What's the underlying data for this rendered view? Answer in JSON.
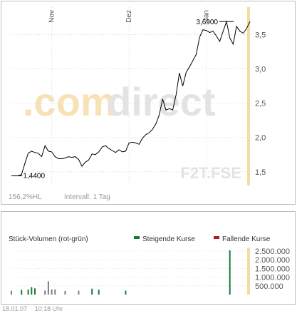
{
  "price_chart": {
    "watermark_main": {
      "part1": ".com",
      "part2": "direct"
    },
    "watermark_symbol": "F2T.FSE",
    "info": {
      "range": "156,2%HL",
      "interval": "Intervall: 1 Tag"
    },
    "colors": {
      "line": "#000000",
      "grid": "#cccccc",
      "highlight": "#f5dca0",
      "watermark_orange": "#f6e2b5",
      "watermark_gray": "#e3e3e3"
    }
  },
  "volume_chart": {
    "title": "Stück-Volumen (rot-grün)",
    "legend": [
      {
        "label": "Steigende Kurse",
        "color": "#1a7a3a"
      },
      {
        "label": "Fallende Kurse",
        "color": "#b01c2e"
      }
    ]
  },
  "footer": {
    "date": "18.01.07",
    "time": "10:18 Uhr"
  },
  "chart_data": [
    {
      "type": "line",
      "title": "",
      "xlabel": "",
      "ylabel": "",
      "x_tick_labels": [
        "Nov",
        "Dez",
        "Jan"
      ],
      "x_tick_index": [
        12,
        35,
        58
      ],
      "y_ticks": [
        "1,5",
        "2,0",
        "2,5",
        "3,0",
        "3,5"
      ],
      "y_tick_values": [
        1.5,
        2.0,
        2.5,
        3.0,
        3.5
      ],
      "ylim": [
        1.3,
        3.9
      ],
      "grid": true,
      "annotations": [
        {
          "text": "1,4400",
          "index": 2,
          "value": 1.44
        },
        {
          "text": "3,6900",
          "index": 64,
          "value": 3.69
        }
      ],
      "series": [
        {
          "values": [
            1.44,
            1.44,
            1.44,
            1.46,
            1.62,
            1.77,
            1.8,
            1.78,
            1.77,
            1.72,
            1.88,
            1.8,
            1.79,
            1.72,
            1.69,
            1.69,
            1.7,
            1.72,
            1.71,
            1.72,
            1.68,
            1.58,
            1.64,
            1.67,
            1.76,
            1.75,
            1.79,
            1.86,
            1.88,
            1.84,
            1.81,
            1.78,
            1.82,
            1.79,
            1.8,
            1.92,
            1.93,
            1.92,
            1.9,
            1.99,
            2.04,
            2.07,
            2.12,
            2.2,
            2.33,
            2.56,
            2.4,
            2.42,
            2.4,
            2.62,
            2.94,
            2.75,
            2.95,
            3.03,
            3.12,
            3.21,
            3.46,
            3.57,
            3.56,
            3.53,
            3.55,
            3.48,
            3.4,
            3.55,
            3.69,
            3.45,
            3.36,
            3.62,
            3.55,
            3.52,
            3.59,
            3.69
          ]
        }
      ]
    },
    {
      "type": "bar",
      "title": "Stück-Volumen (rot-grün)",
      "y_ticks": [
        "500.000",
        "1.000.000",
        "1.500.000",
        "2.000.000",
        "2.500.000"
      ],
      "y_tick_values": [
        500000,
        1000000,
        1500000,
        2000000,
        2500000
      ],
      "ylim": [
        0,
        2700000
      ],
      "series": [
        {
          "name": "Steigende Kurse",
          "values": [
            0,
            0,
            0,
            270000,
            0,
            290000,
            430000,
            360000,
            0,
            0,
            0,
            0,
            0,
            0,
            0,
            0,
            0,
            0,
            0,
            0,
            0,
            0,
            0,
            0,
            340000,
            0,
            280000,
            0,
            0,
            0,
            0,
            0,
            0,
            0,
            230000,
            0,
            0,
            0,
            0,
            0,
            0,
            0,
            0,
            0,
            0,
            0,
            0,
            0,
            0,
            0,
            0,
            0,
            0,
            0,
            0,
            0,
            0,
            0,
            0,
            0,
            0,
            0,
            0,
            0,
            0,
            2540000,
            0,
            0,
            0,
            0,
            0,
            0
          ]
        },
        {
          "name": "Fallende Kurse",
          "values": [
            0,
            0,
            0,
            0,
            0,
            0,
            0,
            0,
            0,
            0,
            0,
            0,
            0,
            0,
            0,
            0,
            0,
            0,
            0,
            0,
            0,
            0,
            0,
            0,
            0,
            0,
            0,
            0,
            0,
            0,
            0,
            0,
            0,
            0,
            0,
            0,
            0,
            0,
            0,
            0,
            0,
            0,
            0,
            0,
            0,
            0,
            0,
            0,
            0,
            0,
            0,
            0,
            0,
            0,
            0,
            0,
            0,
            0,
            0,
            0,
            0,
            0,
            0,
            0,
            0,
            0,
            0,
            0,
            0,
            0,
            0,
            0
          ]
        },
        {
          "name": "Volumen",
          "values": [
            220000,
            0,
            0,
            0,
            0,
            0,
            0,
            0,
            0,
            0,
            230000,
            760000,
            300000,
            300000,
            0,
            0,
            210000,
            0,
            0,
            0,
            220000,
            0,
            0,
            0,
            0,
            0,
            0,
            0,
            0,
            0,
            0,
            0,
            0,
            0,
            0,
            0,
            0,
            0,
            0,
            0,
            0,
            0,
            0,
            0,
            0,
            0,
            0,
            0,
            0,
            0,
            0,
            0,
            0,
            0,
            0,
            0,
            0,
            0,
            0,
            0,
            0,
            0,
            0,
            0,
            0,
            0,
            0,
            0,
            0,
            0,
            0,
            0
          ]
        }
      ]
    }
  ]
}
